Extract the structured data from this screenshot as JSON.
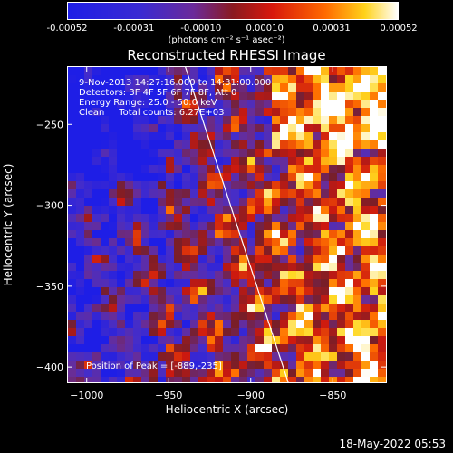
{
  "colorbar": {
    "ticks": [
      "-0.00052",
      "-0.00031",
      "-0.00010",
      "0.00010",
      "0.00031",
      "0.00052"
    ],
    "unit_label": "(photons cm⁻² s⁻¹ asec⁻²)"
  },
  "chart_data": {
    "type": "heatmap",
    "title": "Reconstructed RHESSI Image",
    "xlabel": "Heliocentric X (arcsec)",
    "ylabel": "Heliocentric Y (arcsec)",
    "xlim": [
      -1012,
      -817
    ],
    "ylim": [
      -410,
      -214
    ],
    "x_ticks": [
      -1000,
      -950,
      -900,
      -850
    ],
    "y_ticks": [
      -250,
      -300,
      -350,
      -400
    ],
    "value_range": [
      -0.00052,
      0.00052
    ],
    "colormap": "blue-purple-red-yellow-white",
    "limb_line": {
      "x": [
        -940,
        -877
      ],
      "y": [
        -214,
        -410
      ]
    },
    "annotations": [
      "9-Nov-2013 14:27:16.000 to 14:31:00.000",
      "Detectors: 3F 4F 5F 6F 7F 8F, Att 0",
      "Energy Range: 25.0 - 50.0 keV",
      "Clean     Total counts: 6.27E+03"
    ],
    "peak_label": "Position of Peak = [-889,-235]",
    "peak_position": [
      -889,
      -235
    ],
    "grid": false
  },
  "footer": {
    "timestamp": "18-May-2022 05:53"
  },
  "colors": {
    "background": "#000000",
    "foreground": "#ffffff"
  }
}
